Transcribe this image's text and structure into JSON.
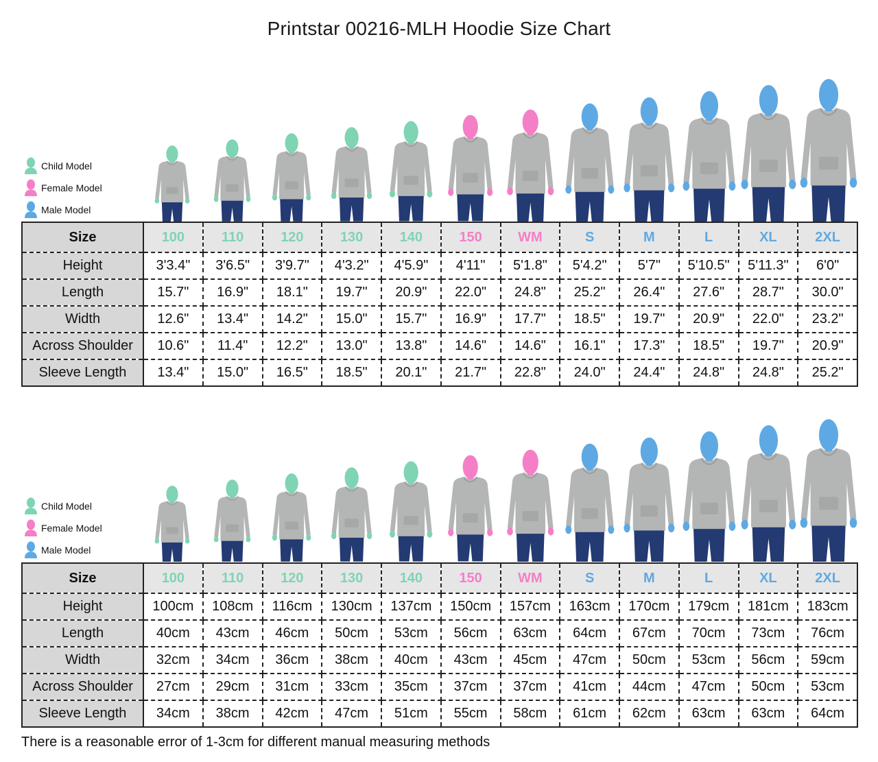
{
  "title": "Printstar 00216-MLH Hoodie Size Chart",
  "legend": [
    {
      "label": "Child Model",
      "color": "#7fd4b3"
    },
    {
      "label": "Female Model",
      "color": "#f47fc6"
    },
    {
      "label": "Male Model",
      "color": "#5ea9e3"
    }
  ],
  "colors": {
    "child": "#7fd4b3",
    "female": "#f47fc6",
    "male": "#5ea9e3",
    "hoodie": "#b4b5b5",
    "jeans": "#233a72"
  },
  "figures": [
    {
      "size": "100",
      "type": "child"
    },
    {
      "size": "110",
      "type": "child"
    },
    {
      "size": "120",
      "type": "child"
    },
    {
      "size": "130",
      "type": "child"
    },
    {
      "size": "140",
      "type": "child"
    },
    {
      "size": "150",
      "type": "female"
    },
    {
      "size": "WM",
      "type": "female"
    },
    {
      "size": "S",
      "type": "male"
    },
    {
      "size": "M",
      "type": "male"
    },
    {
      "size": "L",
      "type": "male"
    },
    {
      "size": "XL",
      "type": "male"
    },
    {
      "size": "2XL",
      "type": "male"
    }
  ],
  "tables": [
    {
      "size_label": "Size",
      "sizes": [
        {
          "label": "100",
          "color": "#7fd4b3"
        },
        {
          "label": "110",
          "color": "#7fd4b3"
        },
        {
          "label": "120",
          "color": "#7fd4b3"
        },
        {
          "label": "130",
          "color": "#7fd4b3"
        },
        {
          "label": "140",
          "color": "#7fd4b3"
        },
        {
          "label": "150",
          "color": "#f47fc6"
        },
        {
          "label": "WM",
          "color": "#f47fc6"
        },
        {
          "label": "S",
          "color": "#5ea9e3"
        },
        {
          "label": "M",
          "color": "#5ea9e3"
        },
        {
          "label": "L",
          "color": "#5ea9e3"
        },
        {
          "label": "XL",
          "color": "#5ea9e3"
        },
        {
          "label": "2XL",
          "color": "#5ea9e3"
        }
      ],
      "rows": [
        {
          "label": "Height",
          "values": [
            "3'3.4\"",
            "3'6.5\"",
            "3'9.7\"",
            "4'3.2\"",
            "4'5.9\"",
            "4'11\"",
            "5'1.8\"",
            "5'4.2\"",
            "5'7\"",
            "5'10.5\"",
            "5'11.3\"",
            "6'0\""
          ]
        },
        {
          "label": "Length",
          "values": [
            "15.7\"",
            "16.9\"",
            "18.1\"",
            "19.7\"",
            "20.9\"",
            "22.0\"",
            "24.8\"",
            "25.2\"",
            "26.4\"",
            "27.6\"",
            "28.7\"",
            "30.0\""
          ]
        },
        {
          "label": "Width",
          "values": [
            "12.6\"",
            "13.4\"",
            "14.2\"",
            "15.0\"",
            "15.7\"",
            "16.9\"",
            "17.7\"",
            "18.5\"",
            "19.7\"",
            "20.9\"",
            "22.0\"",
            "23.2\""
          ]
        },
        {
          "label": "Across Shoulder",
          "values": [
            "10.6\"",
            "11.4\"",
            "12.2\"",
            "13.0\"",
            "13.8\"",
            "14.6\"",
            "14.6\"",
            "16.1\"",
            "17.3\"",
            "18.5\"",
            "19.7\"",
            "20.9\""
          ]
        },
        {
          "label": "Sleeve Length",
          "values": [
            "13.4\"",
            "15.0\"",
            "16.5\"",
            "18.5\"",
            "20.1\"",
            "21.7\"",
            "22.8\"",
            "24.0\"",
            "24.4\"",
            "24.8\"",
            "24.8\"",
            "25.2\""
          ]
        }
      ]
    },
    {
      "size_label": "Size",
      "sizes": [
        {
          "label": "100",
          "color": "#7fd4b3"
        },
        {
          "label": "110",
          "color": "#7fd4b3"
        },
        {
          "label": "120",
          "color": "#7fd4b3"
        },
        {
          "label": "130",
          "color": "#7fd4b3"
        },
        {
          "label": "140",
          "color": "#7fd4b3"
        },
        {
          "label": "150",
          "color": "#f47fc6"
        },
        {
          "label": "WM",
          "color": "#f47fc6"
        },
        {
          "label": "S",
          "color": "#5ea9e3"
        },
        {
          "label": "M",
          "color": "#5ea9e3"
        },
        {
          "label": "L",
          "color": "#5ea9e3"
        },
        {
          "label": "XL",
          "color": "#5ea9e3"
        },
        {
          "label": "2XL",
          "color": "#5ea9e3"
        }
      ],
      "rows": [
        {
          "label": "Height",
          "values": [
            "100cm",
            "108cm",
            "116cm",
            "130cm",
            "137cm",
            "150cm",
            "157cm",
            "163cm",
            "170cm",
            "179cm",
            "181cm",
            "183cm"
          ]
        },
        {
          "label": "Length",
          "values": [
            "40cm",
            "43cm",
            "46cm",
            "50cm",
            "53cm",
            "56cm",
            "63cm",
            "64cm",
            "67cm",
            "70cm",
            "73cm",
            "76cm"
          ]
        },
        {
          "label": "Width",
          "values": [
            "32cm",
            "34cm",
            "36cm",
            "38cm",
            "40cm",
            "43cm",
            "45cm",
            "47cm",
            "50cm",
            "53cm",
            "56cm",
            "59cm"
          ]
        },
        {
          "label": "Across Shoulder",
          "values": [
            "27cm",
            "29cm",
            "31cm",
            "33cm",
            "35cm",
            "37cm",
            "37cm",
            "41cm",
            "44cm",
            "47cm",
            "50cm",
            "53cm"
          ]
        },
        {
          "label": "Sleeve Length",
          "values": [
            "34cm",
            "38cm",
            "42cm",
            "47cm",
            "51cm",
            "55cm",
            "58cm",
            "61cm",
            "62cm",
            "63cm",
            "63cm",
            "64cm"
          ]
        }
      ]
    }
  ],
  "footnote": "There is a reasonable error of 1-3cm for different manual measuring methods"
}
